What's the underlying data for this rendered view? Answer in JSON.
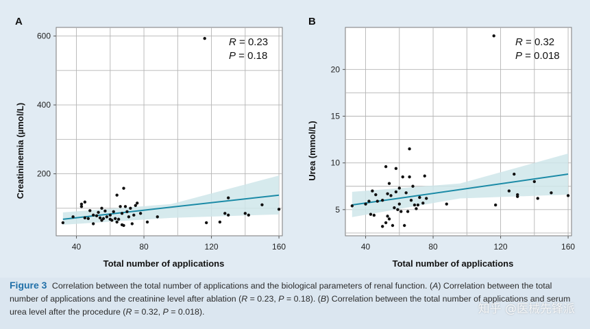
{
  "chart_data": [
    {
      "type": "scatter",
      "panel_label": "A",
      "xlabel": "Total number of applications",
      "ylabel": "Creatininemia (µmol/L)",
      "xlim": [
        28,
        162
      ],
      "ylim": [
        20,
        625
      ],
      "xticks": [
        40,
        80,
        120,
        160
      ],
      "yticks": [
        200,
        400,
        600
      ],
      "grid": true,
      "stats": {
        "r_label": "R",
        "r_value": "= 0.23",
        "p_label": "P",
        "p_value": "= 0.18"
      },
      "trend": {
        "x": [
          32,
          160
        ],
        "y": [
          68,
          138
        ]
      },
      "ci_band": {
        "x": [
          32,
          96,
          160
        ],
        "upper": [
          88,
          112,
          195
        ],
        "lower": [
          52,
          72,
          82
        ]
      },
      "points": [
        [
          32,
          58
        ],
        [
          38,
          75
        ],
        [
          43,
          105
        ],
        [
          43,
          112
        ],
        [
          45,
          118
        ],
        [
          45,
          72
        ],
        [
          47,
          70
        ],
        [
          48,
          93
        ],
        [
          50,
          55
        ],
        [
          50,
          80
        ],
        [
          52,
          78
        ],
        [
          53,
          88
        ],
        [
          54,
          72
        ],
        [
          55,
          100
        ],
        [
          55,
          65
        ],
        [
          56,
          70
        ],
        [
          57,
          92
        ],
        [
          58,
          75
        ],
        [
          60,
          68
        ],
        [
          60,
          80
        ],
        [
          61,
          65
        ],
        [
          62,
          90
        ],
        [
          63,
          70
        ],
        [
          64,
          60
        ],
        [
          64,
          138
        ],
        [
          65,
          68
        ],
        [
          66,
          105
        ],
        [
          67,
          85
        ],
        [
          67,
          52
        ],
        [
          68,
          158
        ],
        [
          68,
          50
        ],
        [
          69,
          105
        ],
        [
          70,
          90
        ],
        [
          71,
          75
        ],
        [
          72,
          100
        ],
        [
          73,
          55
        ],
        [
          74,
          80
        ],
        [
          75,
          108
        ],
        [
          76,
          115
        ],
        [
          78,
          85
        ],
        [
          82,
          60
        ],
        [
          88,
          75
        ],
        [
          116,
          593
        ],
        [
          117,
          58
        ],
        [
          125,
          60
        ],
        [
          128,
          85
        ],
        [
          130,
          80
        ],
        [
          130,
          130
        ],
        [
          140,
          85
        ],
        [
          142,
          80
        ],
        [
          150,
          110
        ],
        [
          160,
          97
        ]
      ]
    },
    {
      "type": "scatter",
      "panel_label": "B",
      "xlabel": "Total number of applications",
      "ylabel": "Urea (mmol/L)",
      "xlim": [
        28,
        162
      ],
      "ylim": [
        2.2,
        24.5
      ],
      "xticks": [
        40,
        80,
        120,
        160
      ],
      "yticks": [
        5,
        10,
        15,
        20
      ],
      "grid": true,
      "stats": {
        "r_label": "R",
        "r_value": "= 0.32",
        "p_label": "P",
        "p_value": "= 0.018"
      },
      "trend": {
        "x": [
          32,
          160
        ],
        "y": [
          5.5,
          8.8
        ]
      },
      "ci_band": {
        "x": [
          32,
          96,
          160
        ],
        "upper": [
          6.9,
          7.8,
          11.0
        ],
        "lower": [
          4.2,
          6.2,
          6.6
        ]
      },
      "points": [
        [
          32,
          5.4
        ],
        [
          40,
          5.6
        ],
        [
          42,
          5.9
        ],
        [
          43,
          4.5
        ],
        [
          44,
          7.0
        ],
        [
          45,
          4.4
        ],
        [
          46,
          6.6
        ],
        [
          47,
          5.9
        ],
        [
          50,
          3.2
        ],
        [
          50,
          6.0
        ],
        [
          52,
          3.6
        ],
        [
          52,
          9.6
        ],
        [
          53,
          4.3
        ],
        [
          53,
          6.7
        ],
        [
          54,
          7.8
        ],
        [
          54,
          4.0
        ],
        [
          55,
          6.5
        ],
        [
          56,
          3.3
        ],
        [
          57,
          5.2
        ],
        [
          58,
          6.9
        ],
        [
          58,
          9.4
        ],
        [
          59,
          5.0
        ],
        [
          60,
          7.3
        ],
        [
          60,
          5.6
        ],
        [
          61,
          4.8
        ],
        [
          62,
          8.5
        ],
        [
          63,
          3.3
        ],
        [
          64,
          6.8
        ],
        [
          65,
          4.8
        ],
        [
          66,
          11.5
        ],
        [
          66,
          8.5
        ],
        [
          67,
          6.0
        ],
        [
          68,
          7.5
        ],
        [
          69,
          5.5
        ],
        [
          70,
          5.1
        ],
        [
          71,
          5.5
        ],
        [
          72,
          6.3
        ],
        [
          74,
          5.7
        ],
        [
          75,
          8.6
        ],
        [
          76,
          6.2
        ],
        [
          88,
          5.6
        ],
        [
          116,
          23.6
        ],
        [
          117,
          5.5
        ],
        [
          125,
          7.0
        ],
        [
          128,
          8.8
        ],
        [
          130,
          6.4
        ],
        [
          130,
          6.6
        ],
        [
          140,
          8.0
        ],
        [
          142,
          6.2
        ],
        [
          150,
          6.8
        ],
        [
          160,
          6.5
        ]
      ]
    }
  ],
  "caption": {
    "label": "Figure 3",
    "part1": " Correlation between the total number of applications and the biological parameters of renal function. (",
    "a": "A",
    "part2": ") Correlation between the total number of applications and the creatinine level after ablation (",
    "r1": "R",
    "part3": " = 0.23, ",
    "p1": "P",
    "part4": " = 0.18). (",
    "b": "B",
    "part5": ") Correlation between the total number of applications and serum urea level after the procedure (",
    "r2": "R",
    "part6": " = 0.32, ",
    "p2": "P",
    "part7": " = 0.018)."
  },
  "watermark": "知乎 @医械先锋派",
  "colors": {
    "trend": "#1a8aa6",
    "band": "#cfe6ea",
    "point": "#111111",
    "grid": "#b4b4b4"
  }
}
